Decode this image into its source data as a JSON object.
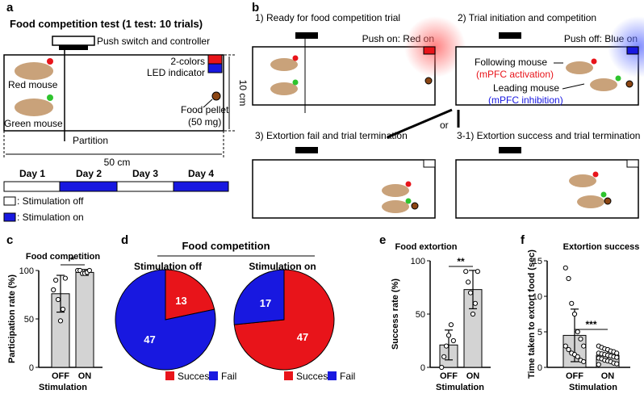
{
  "figure": {
    "a": {
      "letter": "a",
      "title": "Food competition test (1 test: 10 trials)",
      "switch": "Push switch and controller",
      "led1": "2-colors",
      "led2": "LED indicator",
      "red_mouse": "Red mouse",
      "green_mouse": "Green mouse",
      "pellet1": "Food pellet",
      "pellet2": "(50 mg)",
      "height": "10 cm",
      "partition": "Partition",
      "width": "50 cm",
      "days": [
        "Day 1",
        "Day 2",
        "Day 3",
        "Day 4"
      ],
      "legend_off": ": Stimulation off",
      "legend_on": ": Stimulation on"
    },
    "b": {
      "letter": "b",
      "step1": "1) Ready for food competition trial",
      "step1_note": "Push on: Red on",
      "step2": "2) Trial initiation and competition",
      "step2_note": "Push off: Blue on",
      "following": "Following mouse",
      "following_note": "(mPFC activation)",
      "leading": "Leading mouse",
      "leading_note": "(mPFC inhibition)",
      "step3": "3) Extortion fail and trial termination",
      "or": "or",
      "step31": "3-1) Extortion success and trial termination"
    },
    "letters": {
      "c": "c",
      "d": "d",
      "e": "e",
      "f": "f"
    },
    "d_title": "Food competition"
  },
  "chart_data": [
    {
      "type": "bar",
      "title": "Food competition",
      "ylabel": "Participation rate (%)",
      "xlabel": "Stimulation",
      "categories": [
        "OFF",
        "ON"
      ],
      "values": [
        76,
        98
      ],
      "errors": [
        19,
        3
      ],
      "points": [
        [
          80,
          90,
          70,
          48,
          60,
          92
        ],
        [
          100,
          100,
          97,
          97,
          98,
          100
        ]
      ],
      "color": "#d3d3d3",
      "ylim": [
        0,
        100
      ],
      "yticks": [
        0,
        50,
        100
      ],
      "significance": "*"
    },
    {
      "type": "pie",
      "title": "Stimulation off",
      "categories": [
        "Success",
        "Fail"
      ],
      "values": [
        13,
        47
      ],
      "colors": [
        "#e8141a",
        "#1818e0"
      ]
    },
    {
      "type": "pie",
      "title": "Stimulation on",
      "categories": [
        "Success",
        "Fail"
      ],
      "values": [
        47,
        17
      ],
      "colors": [
        "#e8141a",
        "#1818e0"
      ]
    },
    {
      "type": "bar",
      "title": "Food extortion",
      "ylabel": "Success rate (%)",
      "xlabel": "Stimulation",
      "categories": [
        "OFF",
        "ON"
      ],
      "values": [
        21,
        73
      ],
      "errors": [
        14,
        18
      ],
      "points": [
        [
          0,
          10,
          20,
          30,
          40,
          25
        ],
        [
          90,
          80,
          70,
          50,
          60,
          90
        ]
      ],
      "color": "#d3d3d3",
      "ylim": [
        0,
        100
      ],
      "yticks": [
        0,
        50,
        100
      ],
      "significance": "**"
    },
    {
      "type": "bar",
      "title": "Extortion success",
      "ylabel": "Time taken to extort food (sec)",
      "xlabel": "Stimulation",
      "categories": [
        "OFF",
        "ON"
      ],
      "values": [
        4.5,
        1.7
      ],
      "errors": [
        3.7,
        0.8
      ],
      "points": [
        [
          14,
          12.5,
          9,
          7.5,
          5,
          4,
          3,
          3,
          2.5,
          2,
          1.8,
          1.5,
          1,
          0.8
        ],
        [
          3,
          2.8,
          2.6,
          2.5,
          2.3,
          2.2,
          2,
          2,
          1.9,
          1.8,
          1.7,
          1.6,
          1.5,
          1.4,
          1.3,
          1.2,
          1,
          0.9,
          0.8,
          0.6,
          0.5,
          0.4
        ]
      ],
      "color": "#d3d3d3",
      "ylim": [
        0,
        15
      ],
      "yticks": [
        0,
        5,
        10,
        15
      ],
      "significance": "***"
    }
  ]
}
